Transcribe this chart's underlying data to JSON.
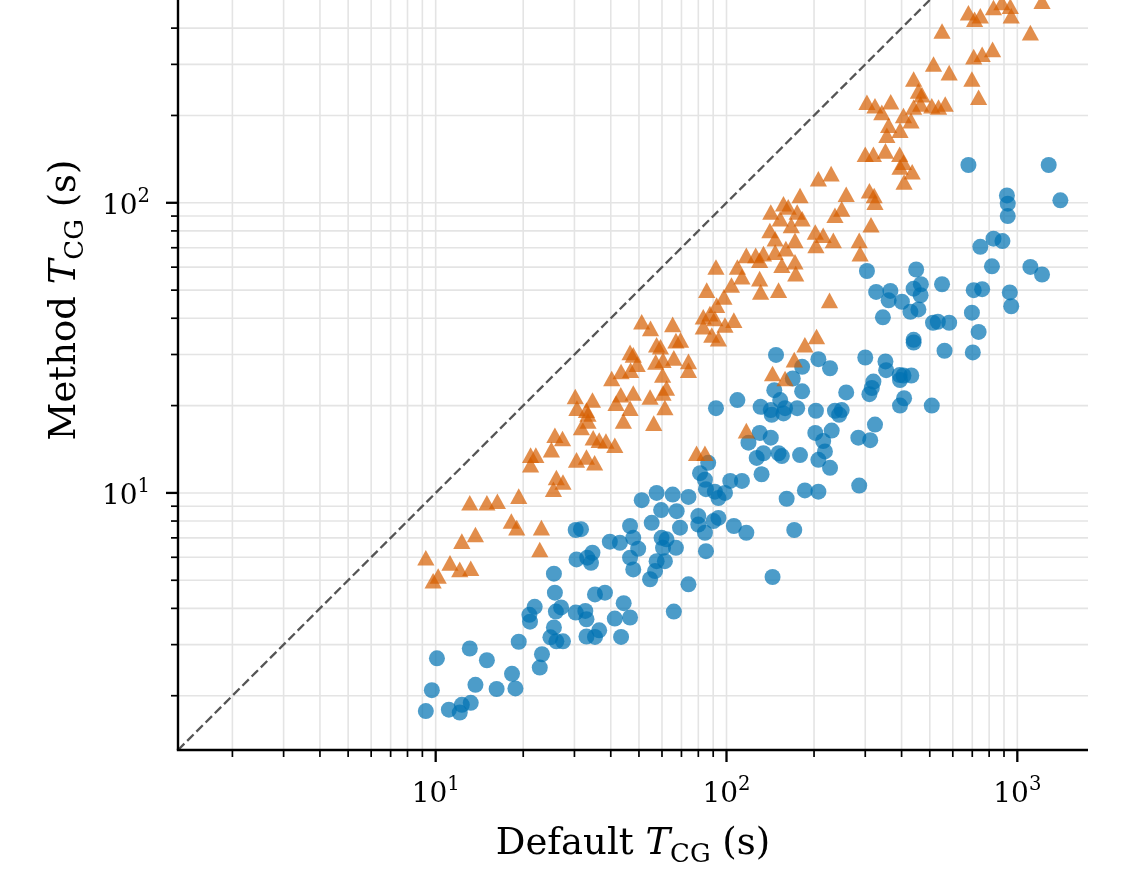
{
  "chart_data": {
    "type": "scatter",
    "log": "xy",
    "grid": true,
    "xlabel": "Default T$_{CG}$ (s)",
    "ylabel": "Method T$_{CG}$ (s)",
    "xlim": [
      1.3,
      1750
    ],
    "ylim": [
      1.3,
      500
    ],
    "xticks": [
      {
        "value": 2,
        "label": null
      },
      {
        "value": 3,
        "label": null
      },
      {
        "value": 4,
        "label": null
      },
      {
        "value": 5,
        "label": null
      },
      {
        "value": 6,
        "label": null
      },
      {
        "value": 7,
        "label": null
      },
      {
        "value": 8,
        "label": null
      },
      {
        "value": 9,
        "label": null
      },
      {
        "value": 10,
        "label": "10$^{1}$"
      },
      {
        "value": 20,
        "label": null
      },
      {
        "value": 30,
        "label": null
      },
      {
        "value": 40,
        "label": null
      },
      {
        "value": 50,
        "label": null
      },
      {
        "value": 60,
        "label": null
      },
      {
        "value": 70,
        "label": null
      },
      {
        "value": 80,
        "label": null
      },
      {
        "value": 90,
        "label": null
      },
      {
        "value": 100,
        "label": "10$^{2}$"
      },
      {
        "value": 200,
        "label": null
      },
      {
        "value": 300,
        "label": null
      },
      {
        "value": 400,
        "label": null
      },
      {
        "value": 500,
        "label": null
      },
      {
        "value": 600,
        "label": null
      },
      {
        "value": 700,
        "label": null
      },
      {
        "value": 800,
        "label": null
      },
      {
        "value": 900,
        "label": null
      },
      {
        "value": 1000,
        "label": "10$^{3}$"
      }
    ],
    "yticks": [
      {
        "value": 2,
        "label": null
      },
      {
        "value": 3,
        "label": null
      },
      {
        "value": 4,
        "label": null
      },
      {
        "value": 5,
        "label": null
      },
      {
        "value": 6,
        "label": null
      },
      {
        "value": 7,
        "label": null
      },
      {
        "value": 8,
        "label": null
      },
      {
        "value": 9,
        "label": null
      },
      {
        "value": 10,
        "label": "10$^{1}$"
      },
      {
        "value": 20,
        "label": null
      },
      {
        "value": 30,
        "label": null
      },
      {
        "value": 40,
        "label": null
      },
      {
        "value": 50,
        "label": null
      },
      {
        "value": 60,
        "label": null
      },
      {
        "value": 70,
        "label": null
      },
      {
        "value": 80,
        "label": null
      },
      {
        "value": 90,
        "label": null
      },
      {
        "value": 100,
        "label": "10$^{2}$"
      },
      {
        "value": 200,
        "label": null
      },
      {
        "value": 300,
        "label": null
      },
      {
        "value": 400,
        "label": null
      }
    ],
    "series": [
      {
        "type": "scatter",
        "marker": "circle",
        "color": "#0072b2",
        "x": [
          9.25,
          9.7,
          10.1,
          11.1,
          12.1,
          12.3,
          13.2,
          13.1,
          13.7,
          15.0,
          16.2,
          18.3,
          18.8,
          19.3,
          21.1,
          21.0,
          21.9,
          23.2,
          22.8,
          25.5,
          25.7,
          25.9,
          27.0,
          25.5,
          24.8,
          26.0,
          27.4,
          30.3,
          31.6,
          30.5,
          33.2,
          34.6,
          34.2,
          30.3,
          32.7,
          33.0,
          35.3,
          33.0,
          35.3,
          36.5,
          41.3,
          43.4,
          44.3,
          46.6,
          148,
          146,
          169,
          109,
          92,
          131,
          142,
          153,
          159,
          175,
          143,
          157,
          130,
          142,
          119,
          134,
          127,
          151,
          155,
          132,
          86.5,
          81.1,
          84.3,
          85,
          91.2,
          98.8,
          93.8,
          103,
          113,
          161,
          144,
          171,
          117,
          106,
          51.1,
          57.5,
          65.3,
          74,
          59.6,
          67.4,
          55.3,
          46.6,
          69.2,
          80,
          80,
          93.8,
          90.2,
          84.3,
          39.7,
          43.0,
          47.8,
          49.7,
          59.8,
          62.2,
          67,
          60.5,
          61.4,
          57.5,
          46.6,
          47.8,
          56.8,
          54.6,
          85,
          74,
          38.2,
          65.9,
          679,
          1282,
          921,
          927,
          927,
          1406,
          746,
          828,
          889,
          818,
          1109,
          1216,
          304,
          449,
          327,
          366,
          361,
          401,
          440,
          466,
          465,
          429,
          457,
          345,
          551,
          708,
          757,
          942,
          953,
          698,
          513,
          533,
          583,
          736,
          440,
          440,
          562,
          703,
          300,
          352,
          354,
          394,
          406,
          432,
          395,
          320,
          316,
          310,
          258,
          408,
          395,
          508,
          324,
          284,
          312,
          286,
          207,
          227,
          182,
          182,
          203,
          236,
          249,
          244,
          202,
          230,
          215,
          207,
          218,
          227,
          186,
          207,
          179
        ],
        "values": [
          1.77,
          2.09,
          2.69,
          1.79,
          1.75,
          1.86,
          1.89,
          2.91,
          2.18,
          2.65,
          2.11,
          2.38,
          2.12,
          3.07,
          3.6,
          3.8,
          4.05,
          2.78,
          2.5,
          5.27,
          4.53,
          3.9,
          4.03,
          3.44,
          3.18,
          3.08,
          3.08,
          7.45,
          7.5,
          5.9,
          5.98,
          6.22,
          5.74,
          3.87,
          3.92,
          3.67,
          4.47,
          3.2,
          3.19,
          3.36,
          3.69,
          3.19,
          4.17,
          3.72,
          29.9,
          22.6,
          24.8,
          20.9,
          19.6,
          19.8,
          19.3,
          20.9,
          19.6,
          19.6,
          18.6,
          18.8,
          16.1,
          15.5,
          14.9,
          13.7,
          13.2,
          13.7,
          13.4,
          11.6,
          12.7,
          11.7,
          11.1,
          10.3,
          10.1,
          10.0,
          9.6,
          11.0,
          11.0,
          9.55,
          5.13,
          7.45,
          7.29,
          7.69,
          9.44,
          10.0,
          9.87,
          9.69,
          8.73,
          8.65,
          7.89,
          7.69,
          7.59,
          8.32,
          7.78,
          8.2,
          8.0,
          7.29,
          6.79,
          6.73,
          7.0,
          6.42,
          7.0,
          6.92,
          6.47,
          6.47,
          5.82,
          5.82,
          5.98,
          5.45,
          5.38,
          5.04,
          6.3,
          4.84,
          4.53,
          3.9,
          135,
          135,
          106,
          99.3,
          90.0,
          102,
          70.5,
          75.2,
          73.8,
          60.4,
          60.1,
          56.6,
          58.2,
          58.9,
          49.3,
          49.7,
          46.1,
          45.6,
          50.6,
          52.4,
          48.0,
          42.1,
          42.9,
          40.3,
          52.4,
          50.0,
          50.4,
          49.1,
          44.0,
          41.8,
          38.6,
          38.9,
          38.6,
          35.9,
          33.7,
          33.0,
          30.9,
          30.5,
          29.3,
          28.4,
          26.5,
          25.5,
          25.4,
          25.4,
          24.5,
          24.2,
          23.0,
          21.9,
          22.2,
          21.2,
          20.0,
          20.0,
          17.2,
          15.5,
          15.2,
          10.6,
          28.9,
          26.9,
          27.2,
          22.4,
          19.2,
          19.2,
          19.3,
          18.6,
          16.1,
          16.4,
          15.1,
          13.0,
          13.9,
          12.2,
          10.2,
          10.1,
          13.5
        ]
      },
      {
        "type": "scatter",
        "marker": "triangle",
        "color": "#d55e00",
        "x": [
          9.25,
          9.8,
          10.2,
          11.2,
          12.1,
          13.2,
          12.3,
          13.7,
          13.1,
          15.0,
          16.3,
          18.2,
          19.0,
          19.3,
          23.1,
          22.8,
          21.2,
          22.1,
          21.2,
          26.0,
          27.4,
          25.4,
          25.7,
          27.3,
          25.0,
          30.5,
          33.0,
          35.2,
          30.2,
          30.6,
          34.6,
          33.0,
          33.4,
          31.7,
          33.4,
          34.8,
          36.5,
          38.5,
          41.3,
          51.1,
          54.8,
          65.3,
          57.5,
          59.3,
          67,
          69.5,
          46.6,
          47.8,
          49.3,
          57.1,
          60.5,
          65.9,
          74,
          74,
          60.3,
          43.4,
          40.3,
          46.8,
          62.2,
          60.5,
          54.6,
          47.8,
          43.3,
          41.7,
          46.6,
          61.4,
          44.2,
          56.2,
          78.9,
          84.3,
          117,
          144,
          159,
          440,
          457,
          470,
          304,
          324,
          367,
          342,
          440,
          465,
          406,
          431,
          361,
          395,
          356,
          300,
          320,
          352,
          394,
          406,
          395,
          435,
          408,
          207,
          229,
          258,
          310,
          322,
          324,
          249,
          236,
          314,
          179,
          157,
          163,
          142,
          153,
          175,
          182,
          167,
          141,
          147,
          172,
          202,
          215,
          233,
          203,
          286,
          288,
          147,
          160,
          117,
          126,
          134,
          130,
          155,
          172,
          173,
          92,
          109,
          113,
          130,
          131,
          151,
          104,
          98,
          85.5,
          92.5,
          87.7,
          83.2,
          91.2,
          98.8,
          106,
          83.2,
          89,
          93.8,
          226,
          204,
          186,
          171,
          679,
          713,
          746,
          828,
          885,
          946,
          953,
          1216,
          1109,
          551,
          708,
          757,
          822,
          515,
          583,
          698,
          736,
          508,
          536,
          565
        ],
        "values": [
          5.98,
          4.98,
          5.17,
          5.74,
          5.45,
          5.5,
          6.82,
          7.19,
          9.25,
          9.25,
          9.36,
          8.0,
          7.59,
          9.75,
          7.59,
          6.38,
          13.5,
          13.5,
          12.5,
          11.3,
          10.9,
          10.3,
          15.8,
          15.4,
          14.1,
          13.0,
          13.3,
          12.7,
          21.5,
          19.6,
          20.9,
          19.3,
          18.7,
          16.8,
          17.7,
          15.5,
          15.2,
          15.1,
          14.6,
          38.9,
          36.9,
          38.1,
          32.4,
          31.9,
          33.5,
          33.7,
          30.5,
          29.9,
          27.8,
          28.3,
          28.7,
          29.2,
          28.4,
          26.5,
          25.5,
          26.2,
          24.8,
          26.5,
          23.0,
          22.1,
          21.4,
          22.1,
          21.8,
          20.4,
          19.6,
          19.7,
          17.7,
          17.4,
          13.7,
          13.7,
          16.4,
          25.8,
          24.8,
          267,
          243,
          236,
          222,
          216,
          223,
          205,
          214,
          219,
          200,
          192,
          185,
          178,
          171,
          147,
          147,
          151,
          147,
          138,
          133,
          128,
          118,
          121,
          126,
          107,
          110,
          106,
          100.5,
          95.3,
          90.6,
          84,
          106,
          99.3,
          96.8,
          92.9,
          88.1,
          92.9,
          88.1,
          83.6,
          80.3,
          75.2,
          74.2,
          79.3,
          77.3,
          74.2,
          71.3,
          74.2,
          66.8,
          67.6,
          69.5,
          65.9,
          65.9,
          66.8,
          63.4,
          60.9,
          62.6,
          57.0,
          60.1,
          60.1,
          55.6,
          54.8,
          49.3,
          50.0,
          52.1,
          47.4,
          50.0,
          44.4,
          41.5,
          40.5,
          39.9,
          37.9,
          39.4,
          37.4,
          35.0,
          34.0,
          46.1,
          34.6,
          32.4,
          28.8,
          452,
          429,
          441,
          471,
          490,
          476,
          441,
          495,
          386,
          391,
          319,
          325,
          338,
          301,
          281,
          267,
          231,
          216,
          214,
          219
        ]
      },
      {
        "type": "line",
        "color": "#555555",
        "line_style": "dashed",
        "x": [
          1.3,
          500
        ],
        "values": [
          1.3,
          500
        ]
      }
    ]
  }
}
